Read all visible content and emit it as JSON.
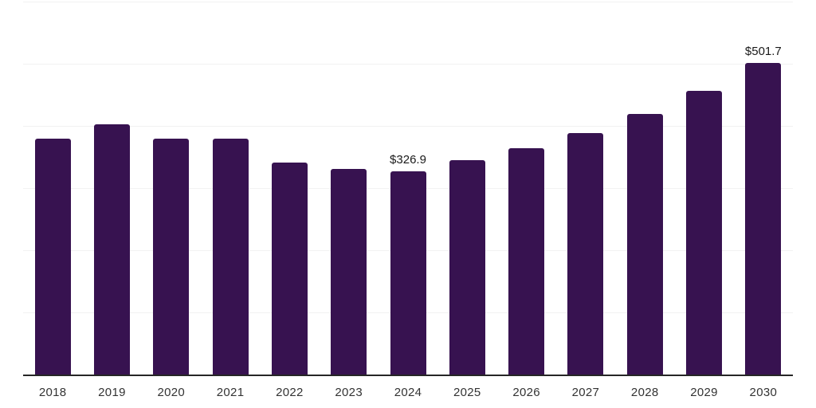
{
  "chart_data": {
    "type": "bar",
    "title": "",
    "xlabel": "",
    "ylabel": "",
    "categories": [
      "2018",
      "2019",
      "2020",
      "2021",
      "2022",
      "2023",
      "2024",
      "2025",
      "2026",
      "2027",
      "2028",
      "2029",
      "2030"
    ],
    "values": [
      378.9,
      402.1,
      378.9,
      380.1,
      341.4,
      330.6,
      326.9,
      344.6,
      363.9,
      388.1,
      419.0,
      456.2,
      501.7
    ],
    "data_labels": [
      "",
      "",
      "",
      "",
      "",
      "",
      "$326.9",
      "",
      "",
      "",
      "",
      "",
      "$501.7"
    ],
    "ylim": [
      0,
      600
    ],
    "grid_step": 100,
    "grid": true,
    "legend": false,
    "legend_position": "none",
    "colors": {
      "bar": "#371250",
      "gridline": "#f2f2f2",
      "axis": "#262626",
      "tick_label": "#333333",
      "data_label": "#1a1a1a",
      "background": "#ffffff"
    }
  }
}
